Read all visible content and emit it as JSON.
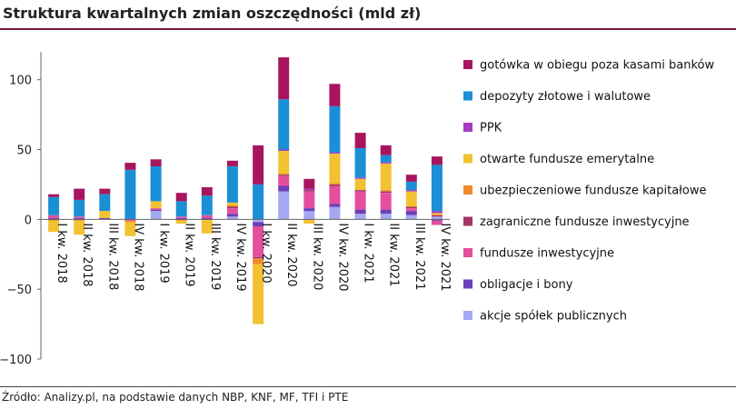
{
  "title": "Struktura kwartalnych zmian oszczędności (mld zł)",
  "source": "Źródło: Analizy.pl, na podstawie danych NBP, KNF, MF, TFI i PTE",
  "chart_data": {
    "type": "bar",
    "stacked": true,
    "title": "Struktura kwartalnych zmian oszczędności (mld zł)",
    "xlabel": "",
    "ylabel": "",
    "ylim": [
      -100,
      120
    ],
    "yticks": [
      -100,
      -50,
      0,
      50,
      100
    ],
    "grid": false,
    "legend_position": "right",
    "categories": [
      "I kw. 2018",
      "II kw. 2018",
      "III kw. 2018",
      "IV kw. 2018",
      "I kw. 2019",
      "II kw. 2019",
      "III kw. 2019",
      "IV kw. 2019",
      "I kw. 2020",
      "II kw. 2020",
      "III kw. 2020",
      "IV kw. 2020",
      "I kw. 2021",
      "II kw. 2021",
      "III kw. 2021",
      "IV kw. 2021"
    ],
    "series": [
      {
        "name": "akcje spółek publicznych",
        "color": "#a3a8f0",
        "values": [
          0,
          0,
          0,
          0,
          6,
          0,
          0,
          2,
          -2,
          20,
          6,
          9,
          4,
          4,
          3,
          2
        ]
      },
      {
        "name": "obligacje i bony",
        "color": "#6a3fb8",
        "values": [
          1,
          1,
          1,
          0.5,
          1,
          1,
          1,
          2,
          -3,
          4,
          2,
          2,
          3,
          3,
          3,
          -1
        ]
      },
      {
        "name": "fundusze inwestycyjne",
        "color": "#e44e9e",
        "values": [
          2,
          1,
          0,
          -1,
          1,
          1,
          2,
          4,
          -22,
          7,
          12,
          13,
          13,
          12,
          2,
          -3
        ]
      },
      {
        "name": "zagraniczne fundusze inwestycyjne",
        "color": "#a33466",
        "values": [
          0,
          0,
          0,
          0,
          0,
          0,
          0,
          1,
          -1,
          1,
          1,
          1,
          1,
          1,
          1,
          1
        ]
      },
      {
        "name": "ubezpieczeniowe fundusze kapitałowe",
        "color": "#f08a2c",
        "values": [
          -1,
          -1,
          0,
          -1,
          0,
          -1,
          0,
          1,
          -4,
          1,
          0,
          1,
          0,
          1,
          0,
          0.5
        ]
      },
      {
        "name": "otwarte fundusze emerytalne",
        "color": "#f2c232",
        "values": [
          -8,
          -10,
          5,
          -10,
          5,
          -2,
          -10,
          2,
          -43,
          16,
          -3,
          21,
          8,
          19,
          11,
          1
        ]
      },
      {
        "name": "PPK",
        "color": "#a63cc4",
        "values": [
          0,
          0,
          0,
          0,
          0,
          0,
          0,
          0,
          0,
          1,
          1,
          1,
          1,
          1,
          1,
          1.5
        ]
      },
      {
        "name": "depozyty złotowe i walutowe",
        "color": "#1a8fd6",
        "values": [
          13,
          12,
          12,
          35,
          25,
          11,
          14,
          26,
          25,
          36,
          0,
          33,
          21,
          5,
          6,
          33
        ]
      },
      {
        "name": "gotówka w obiegu poza kasami banków",
        "color": "#a8155e",
        "values": [
          2,
          8,
          4,
          5,
          5,
          6,
          6,
          4,
          28,
          30,
          7,
          16,
          11,
          7,
          5,
          6
        ]
      }
    ]
  },
  "legend_order": [
    "gotówka w obiegu poza kasami banków",
    "depozyty złotowe i walutowe",
    "PPK",
    "otwarte fundusze emerytalne",
    "ubezpieczeniowe fundusze kapitałowe",
    "zagraniczne fundusze inwestycyjne",
    "fundusze inwestycyjne",
    "obligacje i bony",
    "akcje spółek publicznych"
  ]
}
